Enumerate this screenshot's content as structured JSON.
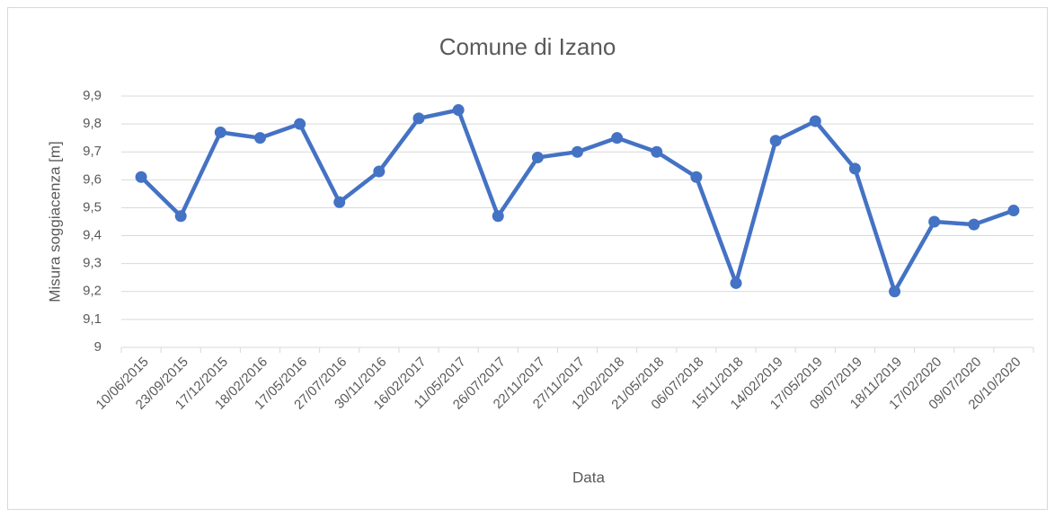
{
  "chart_data": {
    "type": "line",
    "title": "Comune di Izano",
    "x_label": "Data",
    "y_label": "Misura soggiacenza [m]",
    "categories": [
      "10/06/2015",
      "23/09/2015",
      "17/12/2015",
      "18/02/2016",
      "17/05/2016",
      "27/07/2016",
      "30/11/2016",
      "16/02/2017",
      "11/05/2017",
      "26/07/2017",
      "22/11/2017",
      "27/11/2017",
      "12/02/2018",
      "21/05/2018",
      "06/07/2018",
      "15/11/2018",
      "14/02/2019",
      "17/05/2019",
      "09/07/2019",
      "18/11/2019",
      "17/02/2020",
      "09/07/2020",
      "20/10/2020"
    ],
    "values": [
      9.61,
      9.47,
      9.77,
      9.75,
      9.8,
      9.52,
      9.63,
      9.82,
      9.85,
      9.47,
      9.68,
      9.7,
      9.75,
      9.7,
      9.61,
      9.23,
      9.74,
      9.81,
      9.64,
      9.2,
      9.45,
      9.44,
      9.49
    ],
    "color": "#4472c4",
    "ylim": [
      9,
      9.9
    ],
    "yticks": [
      9,
      {
        "value": 9.1,
        "label": "9,1"
      },
      {
        "value": 9.2,
        "label": "9,2"
      },
      {
        "value": 9.3,
        "label": "9,3"
      },
      {
        "value": 9.4,
        "label": "9,4"
      },
      {
        "value": 9.5,
        "label": "9,5"
      },
      {
        "value": 9.6,
        "label": "9,6"
      },
      {
        "value": 9.7,
        "label": "9,7"
      },
      {
        "value": 9.8,
        "label": "9,8"
      },
      {
        "value": 9.9,
        "label": "9,9"
      }
    ],
    "grid": true
  }
}
